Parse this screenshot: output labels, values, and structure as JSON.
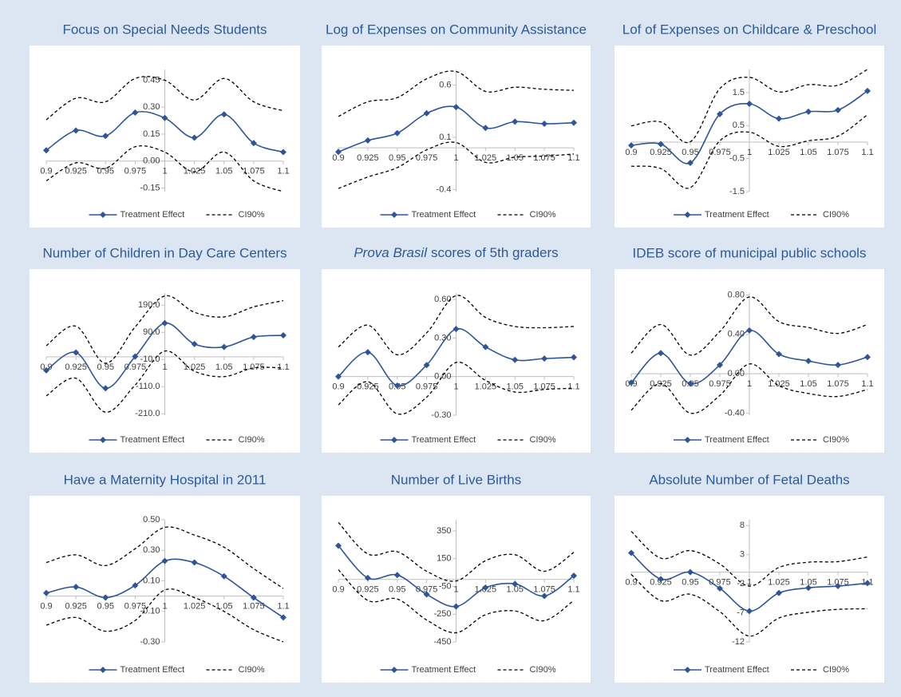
{
  "chart_data": [
    {
      "type": "line",
      "title": "Focus on Special Needs Students",
      "x": [
        0.9,
        0.925,
        0.95,
        0.975,
        1,
        1.025,
        1.05,
        1.075,
        1.1
      ],
      "xlim": [
        0.9,
        1.1
      ],
      "xticks": [
        0.9,
        0.925,
        0.95,
        0.975,
        1,
        1.025,
        1.05,
        1.075,
        1.1
      ],
      "ylim": [
        -0.17,
        0.51
      ],
      "yticks": [
        -0.15,
        {
          "value": 0,
          "label": "0.00"
        },
        0.15,
        {
          "value": 0.3,
          "label": "0.30"
        },
        0.45
      ],
      "series": [
        {
          "name": "Treatment Effect",
          "color": "#2f5597",
          "values": [
            0.06,
            0.17,
            0.14,
            0.27,
            0.24,
            0.13,
            0.26,
            0.1,
            0.05
          ]
        },
        {
          "name": "CI90%",
          "color": "#000000",
          "upper": [
            0.23,
            0.35,
            0.33,
            0.46,
            0.45,
            0.34,
            0.46,
            0.33,
            0.28
          ],
          "lower": [
            -0.11,
            -0.01,
            -0.04,
            0.08,
            0.05,
            -0.06,
            0.05,
            -0.11,
            -0.17
          ]
        }
      ]
    },
    {
      "type": "line",
      "title": "Log of Expenses on Community Assistance",
      "x": [
        0.9,
        0.925,
        0.95,
        0.975,
        1,
        1.025,
        1.05,
        1.075,
        1.1
      ],
      "xlim": [
        0.9,
        1.1
      ],
      "xticks": [
        0.9,
        0.925,
        0.95,
        0.975,
        1,
        1.025,
        1.05,
        1.075,
        1.1
      ],
      "ylim": [
        -0.42,
        0.75
      ],
      "yticks": [
        -0.4,
        0.1,
        0.6
      ],
      "series": [
        {
          "name": "Treatment Effect",
          "color": "#2f5597",
          "values": [
            -0.04,
            0.07,
            0.14,
            0.33,
            0.39,
            0.19,
            0.25,
            0.23,
            0.24
          ]
        },
        {
          "name": "CI90%",
          "color": "#000000",
          "upper": [
            0.3,
            0.44,
            0.48,
            0.66,
            0.73,
            0.54,
            0.58,
            0.56,
            0.55
          ],
          "lower": [
            -0.39,
            -0.28,
            -0.19,
            -0.02,
            0.05,
            -0.14,
            -0.09,
            -0.08,
            -0.06
          ]
        }
      ]
    },
    {
      "type": "line",
      "title": "Lof of Expenses on Childcare & Preschool",
      "x": [
        0.9,
        0.925,
        0.95,
        0.975,
        1,
        1.025,
        1.05,
        1.075,
        1.1
      ],
      "xlim": [
        0.9,
        1.1
      ],
      "xticks": [
        0.9,
        0.925,
        0.95,
        0.975,
        1,
        1.025,
        1.05,
        1.075,
        1.1
      ],
      "ylim": [
        -1.5,
        2.2
      ],
      "yticks": [
        -1.5,
        -0.5,
        0.5,
        1.5
      ],
      "series": [
        {
          "name": "Treatment Effect",
          "color": "#2f5597",
          "values": [
            -0.1,
            -0.06,
            -0.63,
            0.85,
            1.16,
            0.71,
            0.92,
            0.97,
            1.55
          ]
        },
        {
          "name": "CI90%",
          "color": "#000000",
          "upper": [
            0.49,
            0.61,
            0.01,
            1.62,
            1.96,
            1.52,
            1.74,
            1.72,
            2.2
          ],
          "lower": [
            -0.73,
            -0.8,
            -1.38,
            0.04,
            0.3,
            -0.13,
            0.04,
            0.18,
            0.83
          ]
        }
      ]
    },
    {
      "type": "line",
      "title": "Number of Children in Day Care Centers",
      "x": [
        0.9,
        0.925,
        0.95,
        0.975,
        1,
        1.025,
        1.05,
        1.075,
        1.1
      ],
      "xlim": [
        0.9,
        1.1
      ],
      "xticks": [
        0.9,
        0.925,
        0.95,
        0.975,
        1,
        1.025,
        1.05,
        1.075,
        1.1
      ],
      "ylim": [
        -215,
        235
      ],
      "yticks": [
        {
          "value": 190,
          "label": "190.0"
        },
        {
          "value": 90,
          "label": "90.0"
        },
        {
          "value": -10,
          "label": "-10.0"
        },
        {
          "value": -110,
          "label": "-110.0"
        },
        {
          "value": -210,
          "label": "-210.0"
        }
      ],
      "series": [
        {
          "name": "Treatment Effect",
          "color": "#2f5597",
          "values": [
            -50,
            16,
            -116,
            1,
            124,
            47,
            36,
            73,
            79
          ]
        },
        {
          "name": "CI90%",
          "color": "#000000",
          "upper": [
            41,
            113,
            -24,
            110,
            224,
            164,
            147,
            184,
            207
          ],
          "lower": [
            -144,
            -79,
            -204,
            -104,
            21,
            -53,
            -73,
            -41,
            -41
          ]
        }
      ]
    },
    {
      "type": "line",
      "title": [
        "Prova Brasil",
        "scores of 5th graders"
      ],
      "x": [
        0.9,
        0.925,
        0.95,
        0.975,
        1,
        1.025,
        1.05,
        1.075,
        1.1
      ],
      "xlim": [
        0.9,
        1.1
      ],
      "xticks": [
        0.9,
        0.925,
        0.95,
        0.975,
        1,
        1.025,
        1.05,
        1.075,
        1.1
      ],
      "ylim": [
        -0.3,
        0.65
      ],
      "yticks": [
        {
          "value": 0.6,
          "label": "0.60"
        },
        {
          "value": 0.3,
          "label": "0.30"
        },
        {
          "value": 0,
          "label": "0.00"
        },
        {
          "value": -0.3,
          "label": "-0.30"
        }
      ],
      "series": [
        {
          "name": "Treatment Effect",
          "color": "#2f5597",
          "values": [
            0.0,
            0.19,
            -0.07,
            0.09,
            0.37,
            0.23,
            0.13,
            0.14,
            0.15
          ]
        },
        {
          "name": "CI90%",
          "color": "#000000",
          "upper": [
            0.23,
            0.4,
            0.17,
            0.34,
            0.63,
            0.46,
            0.39,
            0.38,
            0.39
          ],
          "lower": [
            -0.22,
            -0.04,
            -0.29,
            -0.16,
            0.11,
            -0.03,
            -0.12,
            -0.1,
            -0.09
          ]
        }
      ]
    },
    {
      "type": "line",
      "title": "IDEB score of municipal public schools",
      "x": [
        0.9,
        0.925,
        0.95,
        0.975,
        1,
        1.025,
        1.05,
        1.075,
        1.1
      ],
      "xlim": [
        0.9,
        1.1
      ],
      "xticks": [
        0.9,
        0.925,
        0.95,
        0.975,
        1,
        1.025,
        1.05,
        1.075,
        1.1
      ],
      "ylim": [
        -0.42,
        0.82
      ],
      "yticks": [
        {
          "value": 0.8,
          "label": "0.80"
        },
        {
          "value": 0.4,
          "label": "0.40"
        },
        {
          "value": 0,
          "label": "0.00"
        },
        {
          "value": -0.4,
          "label": "-0.40"
        }
      ],
      "series": [
        {
          "name": "Treatment Effect",
          "color": "#2f5597",
          "values": [
            -0.09,
            0.21,
            -0.1,
            0.09,
            0.44,
            0.2,
            0.13,
            0.09,
            0.17
          ]
        },
        {
          "name": "CI90%",
          "color": "#000000",
          "upper": [
            0.21,
            0.5,
            0.19,
            0.43,
            0.78,
            0.53,
            0.47,
            0.41,
            0.5
          ],
          "lower": [
            -0.37,
            -0.1,
            -0.4,
            -0.22,
            0.1,
            -0.12,
            -0.2,
            -0.23,
            -0.16
          ]
        }
      ]
    },
    {
      "type": "line",
      "title": "Have a Maternity Hospital in 2011",
      "x": [
        0.9,
        0.925,
        0.95,
        0.975,
        1,
        1.025,
        1.05,
        1.075,
        1.1
      ],
      "xlim": [
        0.9,
        1.1
      ],
      "xticks": [
        0.9,
        0.925,
        0.95,
        0.975,
        1,
        1.025,
        1.05,
        1.075,
        1.1
      ],
      "ylim": [
        -0.3,
        0.5
      ],
      "yticks": [
        {
          "value": 0.5,
          "label": "0.50"
        },
        {
          "value": 0.3,
          "label": "0.30"
        },
        {
          "value": 0.1,
          "label": "0.10"
        },
        {
          "value": -0.1,
          "label": "-0.10"
        },
        {
          "value": -0.3,
          "label": "-0.30"
        }
      ],
      "series": [
        {
          "name": "Treatment Effect",
          "color": "#2f5597",
          "values": [
            0.02,
            0.06,
            -0.01,
            0.07,
            0.23,
            0.22,
            0.13,
            -0.01,
            -0.14
          ]
        },
        {
          "name": "CI90%",
          "color": "#000000",
          "upper": [
            0.22,
            0.27,
            0.2,
            0.31,
            0.45,
            0.4,
            0.32,
            0.18,
            0.05
          ],
          "lower": [
            -0.19,
            -0.14,
            -0.23,
            -0.16,
            0.04,
            -0.01,
            -0.1,
            -0.22,
            -0.3
          ]
        }
      ]
    },
    {
      "type": "line",
      "title": "Number of Live Births",
      "x": [
        0.9,
        0.925,
        0.95,
        0.975,
        1,
        1.025,
        1.05,
        1.075,
        1.1
      ],
      "xlim": [
        0.9,
        1.1
      ],
      "xticks": [
        0.9,
        0.925,
        0.95,
        0.975,
        1,
        1.025,
        1.05,
        1.075,
        1.1
      ],
      "ylim": [
        -450,
        430
      ],
      "yticks": [
        350,
        150,
        -50,
        -250,
        -450
      ],
      "series": [
        {
          "name": "Treatment Effect",
          "color": "#2f5597",
          "values": [
            243,
            11,
            32,
            -108,
            -195,
            -59,
            -32,
            -119,
            27
          ]
        },
        {
          "name": "CI90%",
          "color": "#000000",
          "upper": [
            411,
            184,
            200,
            59,
            -11,
            135,
            178,
            59,
            195
          ],
          "lower": [
            70,
            -151,
            -141,
            -292,
            -384,
            -254,
            -227,
            -297,
            -151
          ]
        }
      ]
    },
    {
      "type": "line",
      "title": "Absolute Number of Fetal Deaths",
      "x": [
        0.9,
        0.925,
        0.95,
        0.975,
        1,
        1.025,
        1.05,
        1.075,
        1.1
      ],
      "xlim": [
        0.9,
        1.1
      ],
      "xticks": [
        0.9,
        0.925,
        0.95,
        0.975,
        1,
        1.025,
        1.05,
        1.075,
        1.1
      ],
      "ylim": [
        -12,
        9
      ],
      "yticks": [
        8,
        3,
        -2,
        -7,
        -12
      ],
      "series": [
        {
          "name": "Treatment Effect",
          "color": "#2f5597",
          "values": [
            3.3,
            -1.2,
            0,
            -2.8,
            -6.7,
            -3.6,
            -2.7,
            -2.4,
            -1.9
          ]
        },
        {
          "name": "CI90%",
          "color": "#000000",
          "upper": [
            7.0,
            2.4,
            3.7,
            1.4,
            -2.4,
            0.8,
            1.7,
            1.8,
            2.6
          ],
          "lower": [
            -0.4,
            -4.9,
            -3.8,
            -6.8,
            -11.0,
            -7.9,
            -6.9,
            -6.4,
            -6.3
          ]
        }
      ]
    }
  ]
}
